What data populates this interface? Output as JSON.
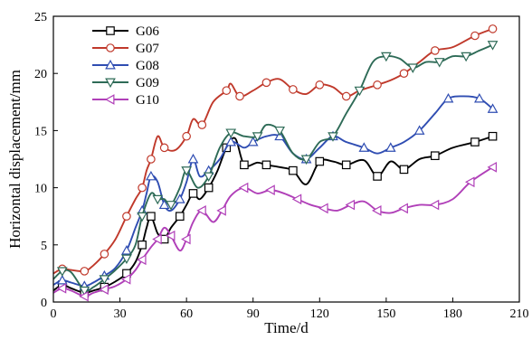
{
  "chart_data": {
    "type": "line",
    "xlabel": "Time/d",
    "ylabel": "Horizontal displacement/mm",
    "xlim": [
      0,
      210
    ],
    "ylim": [
      0,
      25
    ],
    "xticks": [
      0,
      30,
      60,
      90,
      120,
      150,
      180,
      210
    ],
    "yticks": [
      0,
      5,
      10,
      15,
      20,
      25
    ],
    "legend_position": "top-left",
    "grid": false,
    "series": [
      {
        "name": "G06",
        "color": "#000000",
        "marker": "square",
        "x": [
          0,
          4,
          8,
          14,
          18,
          23,
          28,
          33,
          37,
          40,
          42,
          44,
          47,
          50,
          53,
          57,
          60,
          63,
          66,
          70,
          74,
          78,
          82,
          86,
          92,
          96,
          102,
          108,
          114,
          120,
          126,
          132,
          140,
          146,
          152,
          158,
          165,
          172,
          180,
          190,
          198
        ],
        "y": [
          1.0,
          1.5,
          1.2,
          0.8,
          1.0,
          1.3,
          1.8,
          2.5,
          3.5,
          5.0,
          6.5,
          7.5,
          6.0,
          5.5,
          6.5,
          7.5,
          8.5,
          9.5,
          9.0,
          10.0,
          11.5,
          13.5,
          14.3,
          12.0,
          12.2,
          12.0,
          11.8,
          11.5,
          10.3,
          12.3,
          12.3,
          12.0,
          12.4,
          11.0,
          12.3,
          11.6,
          12.5,
          12.8,
          13.5,
          14.0,
          14.5
        ]
      },
      {
        "name": "G07",
        "color": "#c0392b",
        "marker": "circle",
        "x": [
          0,
          4,
          8,
          14,
          18,
          23,
          28,
          33,
          37,
          40,
          42,
          44,
          47,
          50,
          55,
          60,
          63,
          67,
          72,
          78,
          80,
          84,
          90,
          96,
          102,
          108,
          114,
          120,
          126,
          132,
          138,
          146,
          152,
          158,
          165,
          172,
          180,
          190,
          198
        ],
        "y": [
          2.5,
          2.9,
          2.8,
          2.7,
          3.2,
          4.2,
          5.5,
          7.5,
          9.0,
          10.0,
          11.5,
          12.5,
          14.5,
          13.5,
          13.3,
          14.5,
          16.0,
          15.5,
          17.5,
          18.5,
          19.1,
          18.0,
          18.5,
          19.2,
          19.5,
          18.6,
          18.2,
          19.0,
          18.8,
          18.0,
          18.5,
          19.0,
          19.4,
          20.0,
          21.0,
          22.0,
          22.3,
          23.3,
          23.9
        ]
      },
      {
        "name": "G08",
        "color": "#2f4db2",
        "marker": "triangle-up",
        "x": [
          0,
          4,
          8,
          14,
          18,
          23,
          28,
          33,
          37,
          40,
          42,
          44,
          47,
          50,
          53,
          57,
          60,
          63,
          66,
          70,
          75,
          80,
          86,
          90,
          96,
          102,
          108,
          114,
          120,
          126,
          132,
          140,
          146,
          152,
          158,
          165,
          172,
          178,
          185,
          192,
          198
        ],
        "y": [
          1.5,
          1.9,
          1.7,
          1.4,
          1.7,
          2.3,
          3.0,
          4.5,
          6.5,
          8.0,
          9.5,
          11.0,
          10.5,
          8.5,
          8.0,
          9.0,
          10.5,
          12.5,
          11.0,
          11.5,
          12.5,
          14.0,
          13.5,
          14.0,
          14.5,
          14.5,
          13.0,
          12.5,
          13.5,
          14.5,
          14.0,
          13.5,
          13.0,
          13.5,
          14.0,
          15.0,
          16.5,
          17.8,
          18.0,
          17.8,
          16.9
        ]
      },
      {
        "name": "G09",
        "color": "#2e6b57",
        "marker": "triangle-down",
        "x": [
          0,
          4,
          8,
          14,
          18,
          23,
          28,
          33,
          37,
          40,
          44,
          47,
          50,
          53,
          57,
          60,
          65,
          70,
          75,
          80,
          86,
          92,
          96,
          102,
          108,
          114,
          120,
          126,
          132,
          138,
          144,
          150,
          156,
          162,
          168,
          174,
          180,
          186,
          192,
          198
        ],
        "y": [
          2.0,
          2.7,
          2.6,
          1.0,
          1.3,
          2.0,
          2.8,
          3.8,
          5.0,
          7.5,
          9.5,
          9.0,
          9.0,
          8.5,
          10.0,
          11.5,
          10.0,
          11.0,
          13.5,
          14.8,
          14.5,
          14.5,
          15.5,
          15.0,
          13.0,
          12.5,
          14.0,
          14.5,
          16.5,
          18.5,
          21.0,
          21.5,
          21.3,
          20.5,
          21.0,
          21.0,
          21.5,
          21.5,
          22.0,
          22.5
        ]
      },
      {
        "name": "G10",
        "color": "#b03fb8",
        "marker": "triangle-left",
        "x": [
          0,
          4,
          8,
          14,
          18,
          23,
          28,
          33,
          37,
          40,
          44,
          47,
          50,
          53,
          57,
          60,
          63,
          67,
          72,
          76,
          80,
          86,
          92,
          98,
          104,
          110,
          116,
          122,
          128,
          134,
          140,
          146,
          152,
          158,
          165,
          172,
          180,
          188,
          198
        ],
        "y": [
          0.8,
          1.2,
          1.0,
          0.5,
          0.8,
          1.1,
          1.4,
          2.0,
          2.8,
          3.7,
          4.8,
          5.5,
          6.5,
          5.8,
          4.5,
          5.5,
          7.0,
          8.0,
          7.0,
          8.0,
          9.3,
          10.0,
          9.5,
          9.8,
          9.5,
          9.0,
          8.5,
          8.2,
          8.0,
          8.5,
          8.8,
          8.0,
          7.8,
          8.2,
          8.5,
          8.5,
          9.0,
          10.5,
          11.8
        ]
      }
    ]
  }
}
